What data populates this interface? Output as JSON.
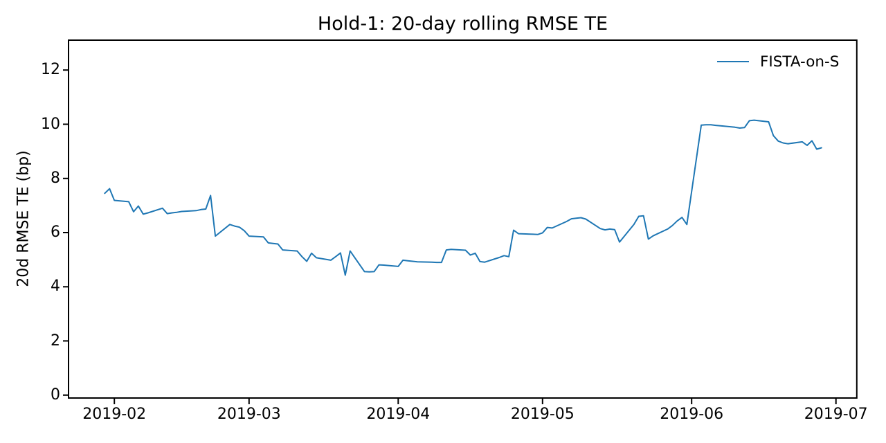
{
  "figure": {
    "title": "Hold-1: 20-day rolling RMSE TE",
    "y_axis_label": "20d RMSE TE (bp)",
    "legend": {
      "entries": [
        {
          "label": "FISTA-on-S",
          "color": "#1f77b4"
        }
      ]
    }
  },
  "chart_data": {
    "type": "line",
    "title": "Hold-1: 20-day rolling RMSE TE",
    "xlabel": "",
    "ylabel": "20d RMSE TE (bp)",
    "x_tick_labels": [
      "2019-02",
      "2019-03",
      "2019-04",
      "2019-05",
      "2019-06",
      "2019-07"
    ],
    "y_ticks": [
      0,
      2,
      4,
      6,
      8,
      10,
      12
    ],
    "ylim": [
      0,
      13.1
    ],
    "grid": false,
    "legend_position": "upper right",
    "series": [
      {
        "name": "FISTA-on-S",
        "color": "#1f77b4",
        "x": [
          "2019-01-30",
          "2019-01-31",
          "2019-02-01",
          "2019-02-04",
          "2019-02-05",
          "2019-02-06",
          "2019-02-07",
          "2019-02-08",
          "2019-02-11",
          "2019-02-12",
          "2019-02-13",
          "2019-02-14",
          "2019-02-15",
          "2019-02-18",
          "2019-02-19",
          "2019-02-20",
          "2019-02-21",
          "2019-02-22",
          "2019-02-25",
          "2019-02-26",
          "2019-02-27",
          "2019-02-28",
          "2019-03-01",
          "2019-03-04",
          "2019-03-05",
          "2019-03-06",
          "2019-03-07",
          "2019-03-08",
          "2019-03-11",
          "2019-03-12",
          "2019-03-13",
          "2019-03-14",
          "2019-03-15",
          "2019-03-18",
          "2019-03-19",
          "2019-03-20",
          "2019-03-21",
          "2019-03-22",
          "2019-03-25",
          "2019-03-26",
          "2019-03-27",
          "2019-03-28",
          "2019-03-29",
          "2019-04-01",
          "2019-04-02",
          "2019-04-03",
          "2019-04-04",
          "2019-04-05",
          "2019-04-08",
          "2019-04-09",
          "2019-04-10",
          "2019-04-11",
          "2019-04-12",
          "2019-04-15",
          "2019-04-16",
          "2019-04-17",
          "2019-04-18",
          "2019-04-19",
          "2019-04-22",
          "2019-04-23",
          "2019-04-24",
          "2019-04-25",
          "2019-04-26",
          "2019-04-29",
          "2019-04-30",
          "2019-05-01",
          "2019-05-02",
          "2019-05-03",
          "2019-05-06",
          "2019-05-07",
          "2019-05-08",
          "2019-05-09",
          "2019-05-10",
          "2019-05-13",
          "2019-05-14",
          "2019-05-15",
          "2019-05-16",
          "2019-05-17",
          "2019-05-20",
          "2019-05-21",
          "2019-05-22",
          "2019-05-23",
          "2019-05-24",
          "2019-05-27",
          "2019-05-28",
          "2019-05-29",
          "2019-05-30",
          "2019-05-31",
          "2019-06-03",
          "2019-06-04",
          "2019-06-05",
          "2019-06-06",
          "2019-06-07",
          "2019-06-10",
          "2019-06-11",
          "2019-06-12",
          "2019-06-13",
          "2019-06-14",
          "2019-06-17",
          "2019-06-18",
          "2019-06-19",
          "2019-06-20",
          "2019-06-21",
          "2019-06-24",
          "2019-06-25",
          "2019-06-26",
          "2019-06-27",
          "2019-06-28"
        ],
        "y": [
          7.45,
          7.62,
          7.19,
          7.14,
          6.77,
          6.98,
          6.68,
          6.73,
          6.9,
          6.7,
          6.73,
          6.75,
          6.78,
          6.81,
          6.85,
          6.87,
          7.37,
          5.87,
          6.3,
          6.24,
          6.2,
          6.07,
          5.87,
          5.84,
          5.62,
          5.6,
          5.58,
          5.36,
          5.32,
          5.11,
          4.94,
          5.24,
          5.07,
          4.98,
          5.11,
          5.25,
          4.43,
          5.32,
          4.56,
          4.55,
          4.56,
          4.81,
          4.8,
          4.75,
          4.98,
          4.96,
          4.94,
          4.92,
          4.91,
          4.9,
          4.9,
          5.36,
          5.38,
          5.35,
          5.17,
          5.24,
          4.93,
          4.91,
          5.08,
          5.15,
          5.11,
          6.09,
          5.96,
          5.94,
          5.93,
          5.99,
          6.19,
          6.17,
          6.41,
          6.51,
          6.53,
          6.55,
          6.5,
          6.15,
          6.1,
          6.13,
          6.11,
          5.65,
          6.3,
          6.6,
          6.62,
          5.76,
          5.88,
          6.13,
          6.26,
          6.43,
          6.56,
          6.3,
          9.97,
          9.98,
          9.98,
          9.96,
          9.94,
          9.89,
          9.86,
          9.88,
          10.13,
          10.15,
          10.09,
          9.58,
          9.38,
          9.31,
          9.28,
          9.35,
          9.22,
          9.39,
          9.08,
          9.13
        ]
      }
    ]
  }
}
